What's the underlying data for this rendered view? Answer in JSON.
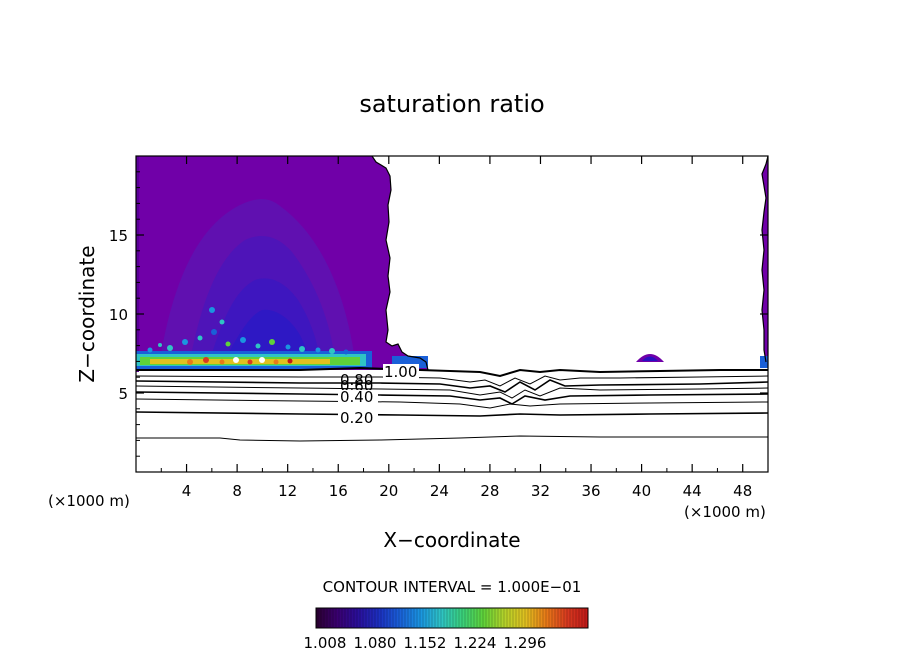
{
  "chart_data": {
    "type": "contour",
    "title": "saturation ratio",
    "xlabel": "X−coordinate",
    "ylabel": "Z−coordinate",
    "x_unit_left": "(×1000 m)",
    "x_unit_right": "(×1000 m)",
    "xlim": [
      0,
      50
    ],
    "ylim": [
      0,
      20
    ],
    "x_ticks": [
      4,
      8,
      12,
      16,
      20,
      24,
      28,
      32,
      36,
      40,
      44,
      48
    ],
    "y_ticks": [
      5,
      10,
      15
    ],
    "contour_labels": [
      {
        "text": "1.00",
        "x": 19.5,
        "z": 6.3
      },
      {
        "text": "0.80",
        "x": 17.8,
        "z": 5.8
      },
      {
        "text": "0.60",
        "x": 17.8,
        "z": 5.2
      },
      {
        "text": "0.40",
        "x": 17.8,
        "z": 4.6
      },
      {
        "text": "0.20",
        "x": 17.8,
        "z": 3.5
      }
    ],
    "contour_interval_text": "CONTOUR INTERVAL = 1.000E−01",
    "colorbar": {
      "tick_labels": [
        "1.008",
        "1.080",
        "1.152",
        "1.224",
        "1.296"
      ],
      "colors": [
        "#2b0030",
        "#3a0070",
        "#2a0f9a",
        "#1c2fc0",
        "#1a60d8",
        "#1a95e0",
        "#2fc4c4",
        "#3ad07a",
        "#5fd23a",
        "#b4d22a",
        "#e0c020",
        "#e87a18",
        "#d83a20",
        "#c01818"
      ]
    }
  }
}
